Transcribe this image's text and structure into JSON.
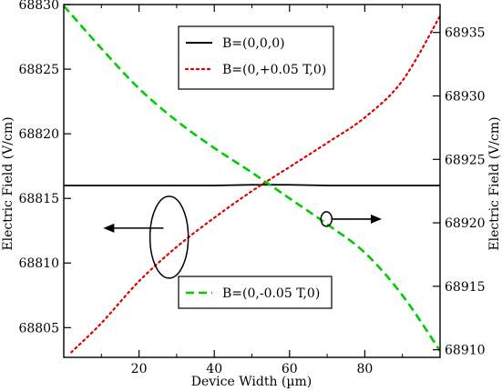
{
  "chart_data": {
    "type": "line",
    "xlabel": "Device Width (µm)",
    "ylabel_left": "Electric Field (V/cm)",
    "ylabel_right": "Electric Field (V/cm)",
    "xlim": [
      0,
      100
    ],
    "ylim_left": [
      68802.7,
      68830
    ],
    "ylim_right": [
      68909.4,
      68937.2
    ],
    "x_ticks": [
      20,
      40,
      60,
      80
    ],
    "y_left_ticks": [
      68805,
      68810,
      68815,
      68820,
      68825,
      68830
    ],
    "y_right_ticks": [
      68910,
      68915,
      68920,
      68925,
      68930,
      68935
    ],
    "grid": false,
    "series": [
      {
        "name": "B=(0,0,0)",
        "axis": "left",
        "color": "#000000",
        "style": "solid",
        "x": [
          0,
          10,
          20,
          30,
          40,
          50,
          60,
          70,
          80,
          90,
          100
        ],
        "y": [
          68816,
          68816,
          68816,
          68816,
          68816,
          68816.05,
          68816.05,
          68816,
          68816,
          68816,
          68816
        ]
      },
      {
        "name": "B=(0,+0.05 T,0)",
        "axis": "right",
        "color": "#e00000",
        "style": "dotted",
        "x": [
          2,
          10,
          20,
          30,
          40,
          50,
          60,
          70,
          80,
          90,
          100
        ],
        "y": [
          68909.8,
          68912.1,
          68915.4,
          68918.1,
          68920.4,
          68922.5,
          68924.4,
          68926.3,
          68928.3,
          68931.2,
          68936.3
        ]
      },
      {
        "name": "B=(0,-0.05 T,0)",
        "axis": "left",
        "color": "#00cc00",
        "style": "dashed",
        "x": [
          0,
          10,
          20,
          30,
          40,
          50,
          60,
          70,
          80,
          90,
          100
        ],
        "y": [
          68829.9,
          68826.6,
          68823.5,
          68821.0,
          68818.9,
          68817.0,
          68815.0,
          68813.0,
          68810.8,
          68807.5,
          68803.2
        ]
      }
    ],
    "annotations": {
      "left_ellipse_center": {
        "x": 28,
        "y": 68812
      },
      "right_ellipse_center": {
        "x": 69.8,
        "y": 68813.4
      },
      "left_arrow": {
        "from_x": 26.5,
        "to_x": 10.5,
        "y": 68812.7
      },
      "right_arrow": {
        "from_x": 71.2,
        "to_x": 84.5,
        "y": 68813.4
      }
    }
  }
}
